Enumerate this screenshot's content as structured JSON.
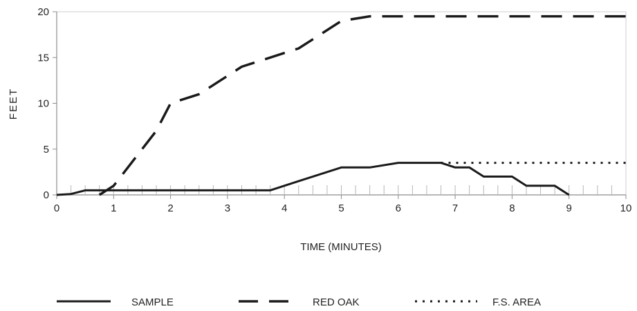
{
  "chart_data": {
    "type": "line",
    "title": "",
    "xlabel": "TIME (MINUTES)",
    "ylabel": "FEET",
    "xlim": [
      0,
      10
    ],
    "ylim": [
      0,
      20
    ],
    "x_ticks": [
      "0",
      "1",
      "2",
      "3",
      "4",
      "5",
      "6",
      "7",
      "8",
      "9",
      "10"
    ],
    "y_ticks": [
      "0",
      "5",
      "10",
      "15",
      "20"
    ],
    "grid": false,
    "legend_position": "bottom",
    "series": [
      {
        "name": "SAMPLE",
        "style": "solid",
        "x": [
          0,
          0.25,
          0.5,
          3.75,
          4.25,
          5,
          5.5,
          6,
          6.75,
          7,
          7.25,
          7.5,
          8,
          8.25,
          8.75,
          9
        ],
        "y": [
          0,
          0.1,
          0.5,
          0.5,
          1.5,
          3,
          3,
          3.5,
          3.5,
          3,
          3,
          2,
          2,
          1,
          1,
          0
        ]
      },
      {
        "name": "RED OAK",
        "style": "dashed",
        "x": [
          0.75,
          1,
          1.25,
          1.75,
          2,
          2.5,
          3,
          3.25,
          3.75,
          4.25,
          4.5,
          5,
          5.5,
          10
        ],
        "y": [
          0,
          1,
          3,
          7,
          10,
          11,
          13,
          14,
          15,
          16,
          17,
          19,
          19.5,
          19.5
        ]
      },
      {
        "name": "F.S. AREA",
        "style": "dotted",
        "x": [
          6.75,
          10
        ],
        "y": [
          3.5,
          3.5
        ]
      }
    ],
    "colors": {
      "line": "#1a1a1a",
      "axis": "#8c8c8c",
      "frame": "#cfcfcf"
    }
  }
}
